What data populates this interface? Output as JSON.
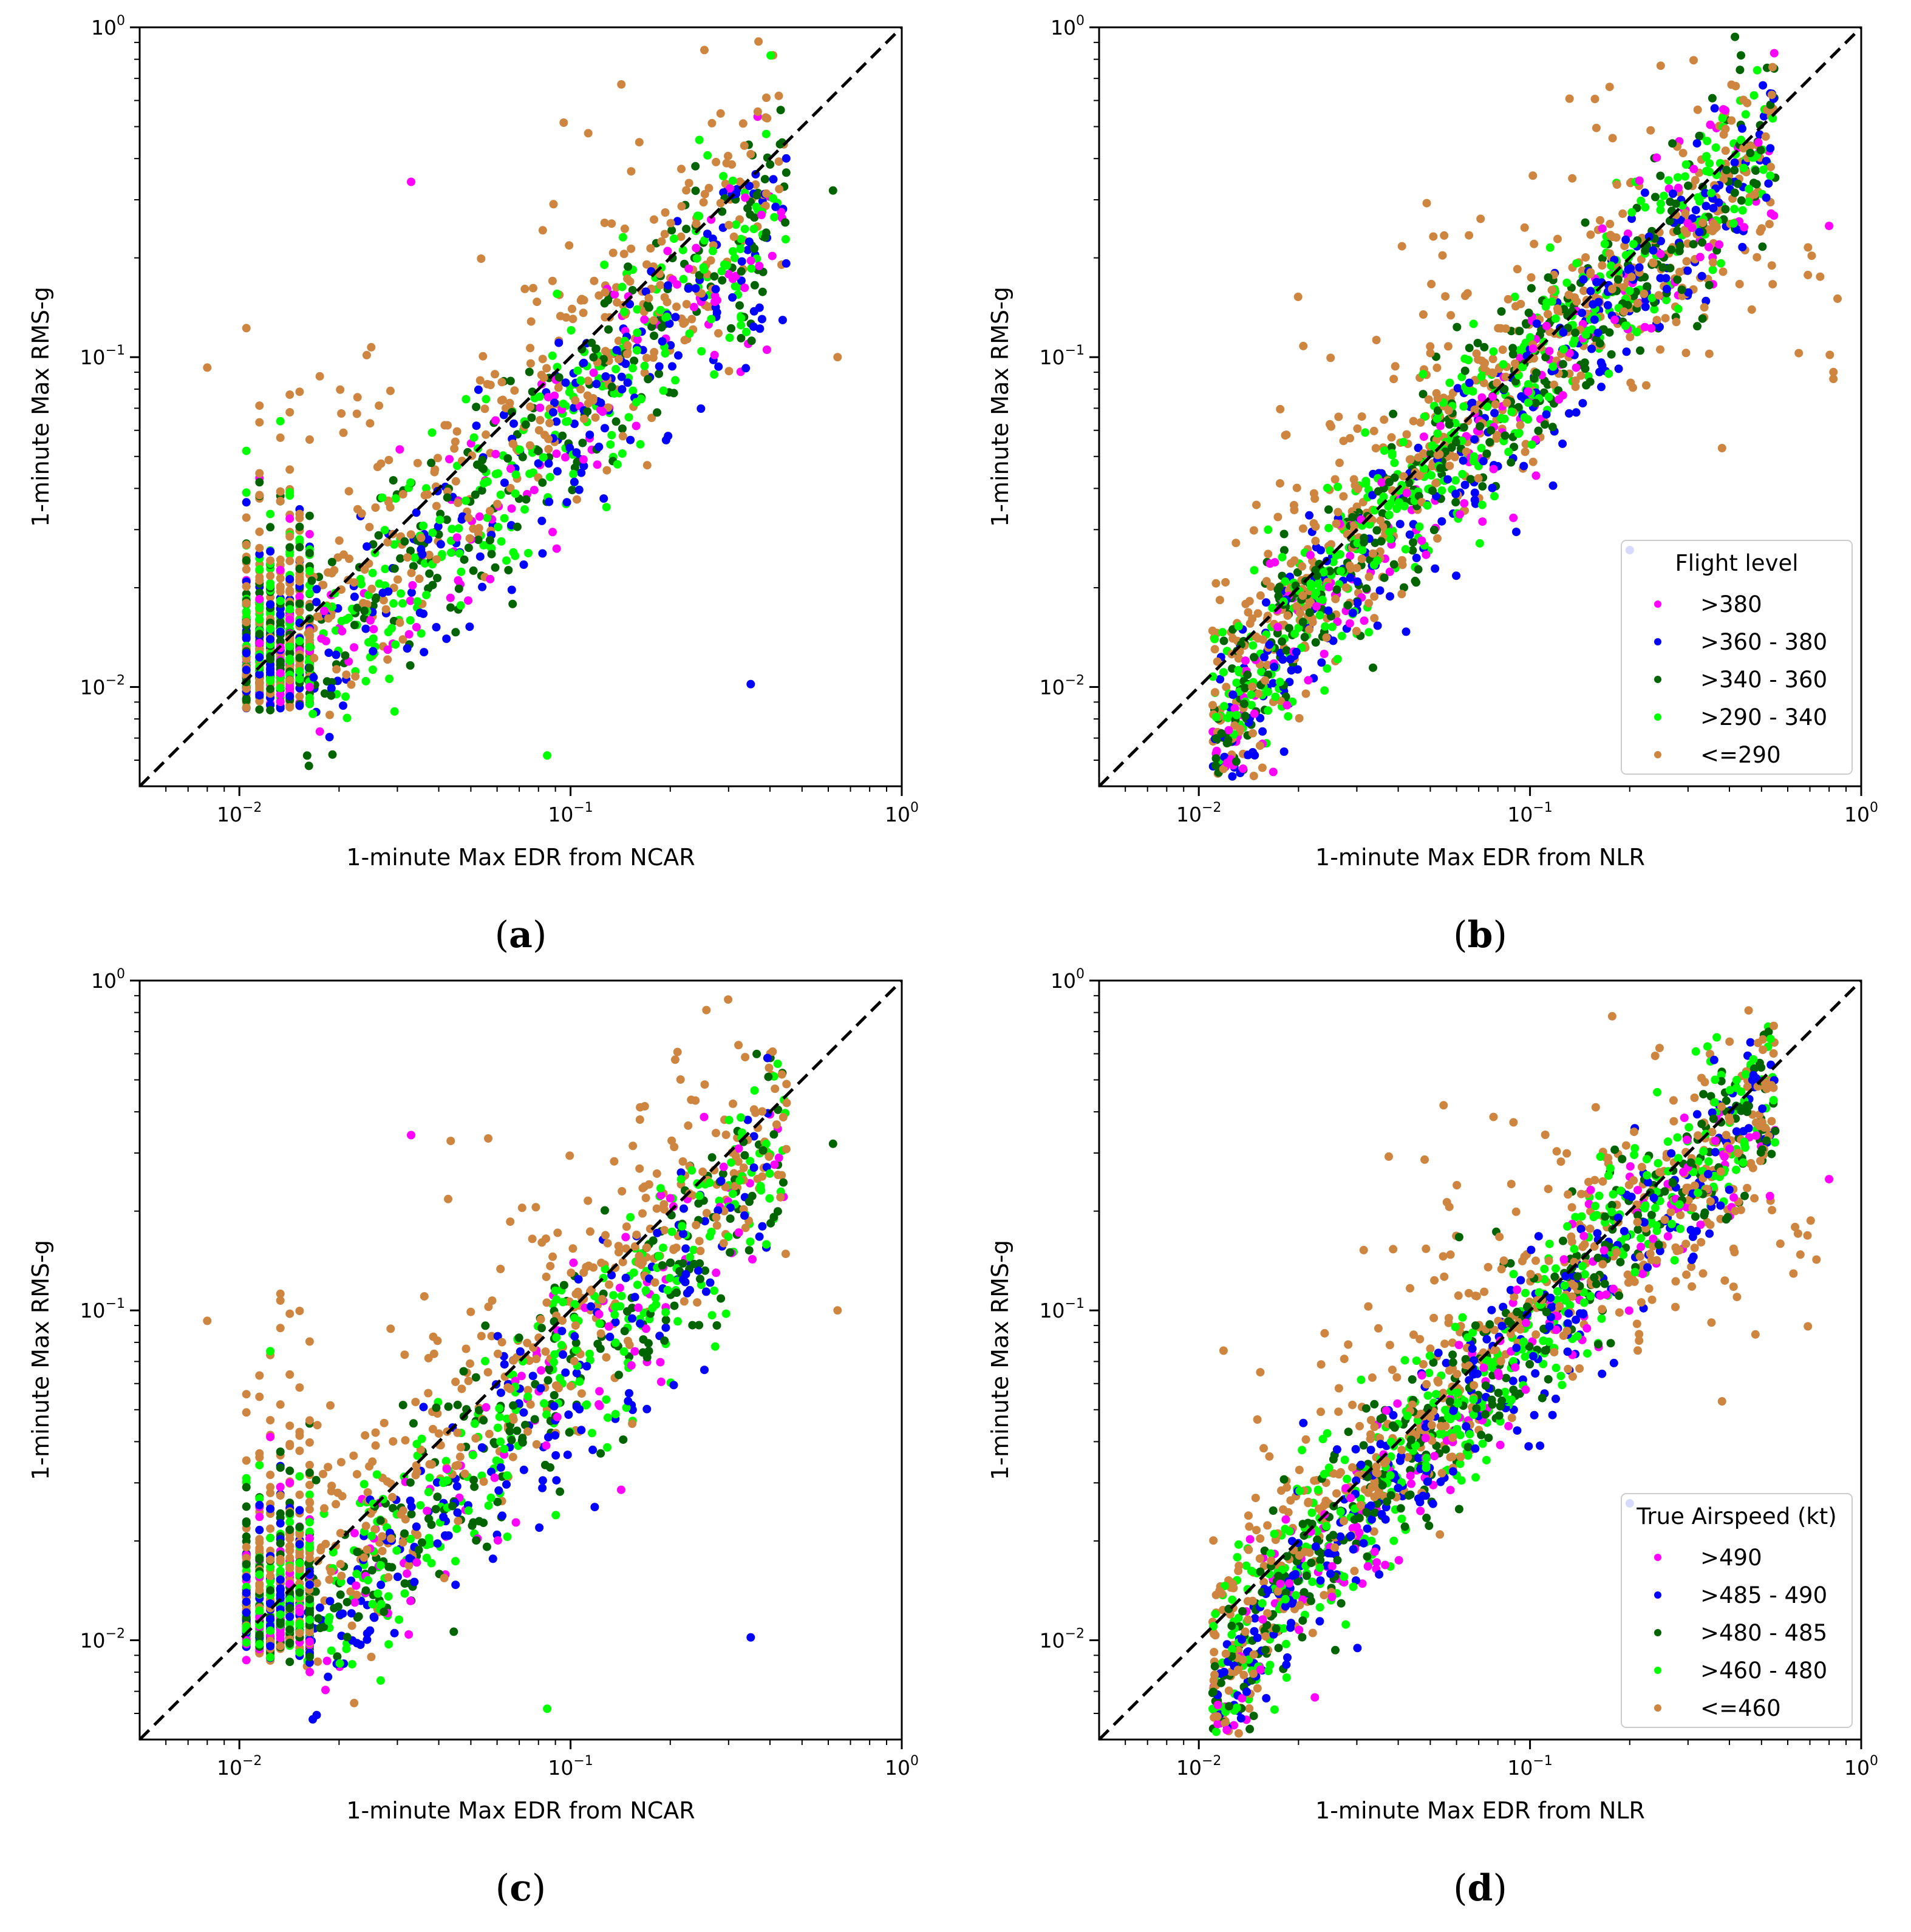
{
  "figure": {
    "panels": [
      {
        "id": "a",
        "caption_letter": "a",
        "xlabel": "1-minute Max EDR from NCAR",
        "ylabel": "1-minute Max RMS-g",
        "legend_key": null,
        "seed": 11,
        "style": "ncar"
      },
      {
        "id": "b",
        "caption_letter": "b",
        "xlabel": "1-minute Max EDR from NLR",
        "ylabel": "1-minute Max RMS-g",
        "legend_key": "flight_level",
        "seed": 23,
        "style": "nlr"
      },
      {
        "id": "c",
        "caption_letter": "c",
        "xlabel": "1-minute Max EDR from NCAR",
        "ylabel": "1-minute Max RMS-g",
        "legend_key": null,
        "seed": 37,
        "style": "ncar"
      },
      {
        "id": "d",
        "caption_letter": "d",
        "xlabel": "1-minute Max EDR from NLR",
        "ylabel": "1-minute Max RMS-g",
        "legend_key": "airspeed",
        "seed": 51,
        "style": "nlr"
      }
    ],
    "legends": {
      "flight_level": {
        "title": "Flight level",
        "entries": [
          ">380",
          ">360 - 380",
          ">340 - 360",
          ">290 - 340",
          "<=290"
        ]
      },
      "airspeed": {
        "title": "True Airspeed (kt)",
        "entries": [
          ">490",
          ">485 - 490",
          ">480 - 485",
          ">460 - 480",
          "<=460"
        ]
      }
    },
    "category_colors": [
      "#ff00ff",
      "#0000ff",
      "#006400",
      "#00ff00",
      "#cd853f"
    ],
    "ticks": {
      "x": [
        0.01,
        0.1,
        1
      ],
      "y": [
        0.01,
        0.1,
        1
      ],
      "labels": [
        {
          "base": "10",
          "exp": "−2"
        },
        {
          "base": "10",
          "exp": "−1"
        },
        {
          "base": "10",
          "exp": "0"
        }
      ]
    }
  },
  "chart_data": [
    {
      "type": "scatter",
      "panel": "a",
      "xscale": "log",
      "yscale": "log",
      "xlim": [
        0.005,
        1.0
      ],
      "ylim": [
        0.005,
        1.0
      ],
      "xlabel": "1-minute Max EDR from NCAR",
      "ylabel": "1-minute Max RMS-g",
      "reference_line": "y = x (black dashed)",
      "series": [
        {
          "name": ">380",
          "color": "#ff00ff",
          "n": 170
        },
        {
          "name": ">360 - 380",
          "color": "#0000ff",
          "n": 290
        },
        {
          "name": ">340 - 360",
          "color": "#006400",
          "n": 380
        },
        {
          "name": ">290 - 340",
          "color": "#00ff00",
          "n": 420
        },
        {
          "name": "<=290",
          "color": "#cd853f",
          "n": 560
        }
      ],
      "notable_points": [
        [
          0.033,
          0.34
        ],
        [
          0.62,
          0.32
        ],
        [
          0.64,
          0.1
        ],
        [
          0.35,
          0.0102
        ],
        [
          0.085,
          0.0062
        ],
        [
          0.008,
          0.093
        ]
      ]
    },
    {
      "type": "scatter",
      "panel": "b",
      "xscale": "log",
      "yscale": "log",
      "xlim": [
        0.005,
        1.0
      ],
      "ylim": [
        0.005,
        1.0
      ],
      "xlabel": "1-minute Max EDR from NLR",
      "ylabel": "1-minute Max RMS-g",
      "reference_line": "y = x (black dashed)",
      "legend": {
        "title": "Flight level",
        "location": "lower right"
      },
      "series": [
        {
          "name": ">380",
          "color": "#ff00ff",
          "n": 180
        },
        {
          "name": ">360 - 380",
          "color": "#0000ff",
          "n": 300
        },
        {
          "name": ">340 - 360",
          "color": "#006400",
          "n": 380
        },
        {
          "name": ">290 - 340",
          "color": "#00ff00",
          "n": 430
        },
        {
          "name": "<=290",
          "color": "#cd853f",
          "n": 600
        }
      ],
      "notable_points": [
        [
          0.8,
          0.25
        ],
        [
          0.55,
          0.35
        ],
        [
          0.38,
          0.053
        ],
        [
          0.2,
          0.026
        ]
      ]
    },
    {
      "type": "scatter",
      "panel": "c",
      "xscale": "log",
      "yscale": "log",
      "xlim": [
        0.005,
        1.0
      ],
      "ylim": [
        0.005,
        1.0
      ],
      "xlabel": "1-minute Max EDR from NCAR",
      "ylabel": "1-minute Max RMS-g",
      "reference_line": "y = x (black dashed)",
      "series": [
        {
          "name": ">380",
          "color": "#ff00ff",
          "n": 170
        },
        {
          "name": ">360 - 380",
          "color": "#0000ff",
          "n": 290
        },
        {
          "name": ">340 - 360",
          "color": "#006400",
          "n": 380
        },
        {
          "name": ">290 - 340",
          "color": "#00ff00",
          "n": 420
        },
        {
          "name": "<=290",
          "color": "#cd853f",
          "n": 560
        }
      ],
      "notable_points": [
        [
          0.033,
          0.34
        ],
        [
          0.62,
          0.32
        ],
        [
          0.64,
          0.1
        ],
        [
          0.35,
          0.0102
        ],
        [
          0.085,
          0.0062
        ],
        [
          0.008,
          0.093
        ]
      ]
    },
    {
      "type": "scatter",
      "panel": "d",
      "xscale": "log",
      "yscale": "log",
      "xlim": [
        0.005,
        1.0
      ],
      "ylim": [
        0.005,
        1.0
      ],
      "xlabel": "1-minute Max EDR from NLR",
      "ylabel": "1-minute Max RMS-g",
      "reference_line": "y = x (black dashed)",
      "legend": {
        "title": "True Airspeed (kt)",
        "location": "lower right"
      },
      "series": [
        {
          "name": ">490",
          "color": "#ff00ff",
          "n": 180
        },
        {
          "name": ">485 - 490",
          "color": "#0000ff",
          "n": 300
        },
        {
          "name": ">480 - 485",
          "color": "#006400",
          "n": 380
        },
        {
          "name": ">460 - 480",
          "color": "#00ff00",
          "n": 430
        },
        {
          "name": "<=460",
          "color": "#cd853f",
          "n": 600
        }
      ],
      "notable_points": [
        [
          0.8,
          0.25
        ],
        [
          0.55,
          0.35
        ],
        [
          0.38,
          0.053
        ],
        [
          0.2,
          0.026
        ]
      ]
    }
  ]
}
